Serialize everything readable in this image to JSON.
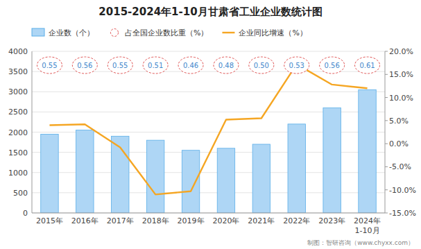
{
  "chart_data": {
    "type": "bar",
    "title": "2015-2024年1-10月甘肃省工业企业数统计图",
    "categories": [
      "2015年",
      "2016年",
      "2017年",
      "2018年",
      "2019年",
      "2020年",
      "2021年",
      "2022年",
      "2023年",
      "2024年"
    ],
    "series": [
      {
        "name": "企业数（个）",
        "type": "bar",
        "color": "#aed6f5",
        "values": [
          1950,
          2050,
          1900,
          1800,
          1550,
          1600,
          1700,
          2200,
          2600,
          3050
        ]
      },
      {
        "name": "占全国企业数比重（%）",
        "type": "scatter",
        "marker": "circle",
        "color": "#e05555",
        "data_labels": true,
        "values": [
          0.55,
          0.56,
          0.55,
          0.51,
          0.46,
          0.48,
          0.5,
          0.53,
          0.56,
          0.61
        ],
        "value_labels": [
          "0.55",
          "0.56",
          "0.55",
          "0.51",
          "0.46",
          "0.48",
          "0.50",
          "0.53",
          "0.56",
          "0.61"
        ]
      },
      {
        "name": "企业同比增速（%）",
        "type": "line",
        "axis": "y2",
        "color": "#f5a623",
        "values": [
          4.0,
          4.2,
          -0.8,
          -11.0,
          -10.3,
          5.2,
          5.5,
          17.2,
          12.8,
          12.0
        ]
      }
    ],
    "ylim": [
      0,
      4000
    ],
    "yticks": [
      0,
      500,
      1000,
      1500,
      2000,
      2500,
      3000,
      3500,
      4000
    ],
    "y2lim": [
      -15,
      20
    ],
    "y2ticks": [
      {
        "value": -15,
        "label": "-15.0%"
      },
      {
        "value": -10,
        "label": "-10.0%"
      },
      {
        "value": -5,
        "label": "-5.0%"
      },
      {
        "value": 0,
        "label": "0.0%"
      },
      {
        "value": 5,
        "label": "5.0%"
      },
      {
        "value": 10,
        "label": "10.0%"
      },
      {
        "value": 15,
        "label": "15.0%"
      },
      {
        "value": 20,
        "label": "20.0%"
      }
    ],
    "grid": true,
    "legend": "top",
    "annotations": [
      "1-10月",
      "制图：智研咨询（www.chyxx.com）"
    ]
  }
}
